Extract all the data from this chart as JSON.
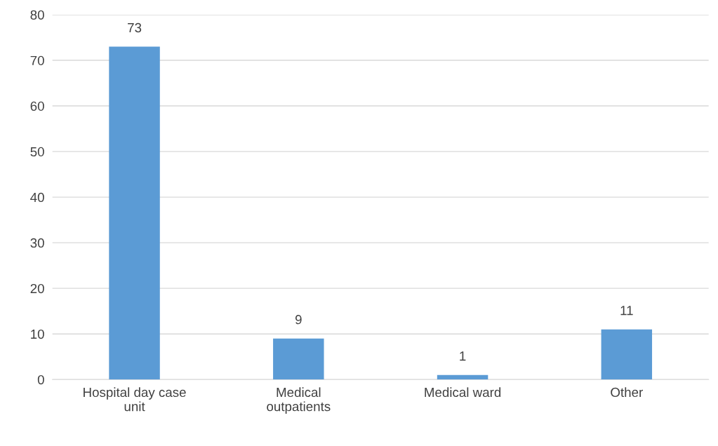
{
  "chart_data": {
    "type": "bar",
    "categories": [
      "Hospital day case\nunit",
      "Medical\noutpatients",
      "Medical ward",
      "Other"
    ],
    "values": [
      73,
      9,
      1,
      11
    ],
    "color": "#5b9bd5",
    "ylim": [
      0,
      80
    ],
    "yticks": [
      0,
      10,
      20,
      30,
      40,
      50,
      60,
      70,
      80
    ],
    "grid": "y",
    "data_labels": true
  }
}
